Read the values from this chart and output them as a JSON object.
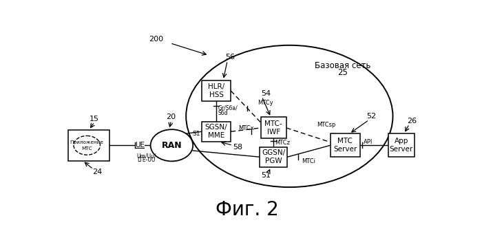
{
  "title": "Фиг. 2",
  "label_200": "200",
  "label_56": "56",
  "label_54": "54",
  "label_52": "52",
  "label_26": "26",
  "label_25": "25",
  "label_20": "20",
  "label_15": "15",
  "label_24": "24",
  "label_58": "58",
  "label_51": "51",
  "label_S1": "S1",
  "label_core": "Базовая сеть",
  "label_UE": "UE",
  "label_MTCx": "MTCx",
  "label_MTCy": "MTCy",
  "label_MTCsp": "MTCsp",
  "label_MTCz": "MTCz",
  "label_MTCi": "MTCi",
  "label_GrS6a": "Gr/S6a/\nS6d",
  "label_API": "API",
  "bg_color": "#ffffff"
}
